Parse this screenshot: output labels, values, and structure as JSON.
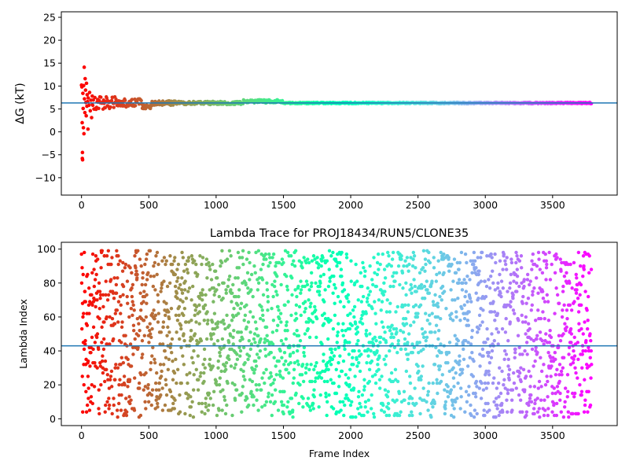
{
  "chart_data": [
    {
      "type": "scatter",
      "title": "",
      "xlabel": "",
      "ylabel": "ΔG (kT)",
      "xlim": [
        -150,
        3980
      ],
      "ylim": [
        -13.8,
        26.2
      ],
      "xticks": [
        0,
        500,
        1000,
        1500,
        2000,
        2500,
        3000,
        3500
      ],
      "yticks": [
        -10,
        -5,
        0,
        5,
        10,
        15,
        20,
        25
      ],
      "hline": 6.3,
      "hline_color": "#1f77b4",
      "colormap": "rainbow (red at frame 0 → violet at last frame)",
      "grid": false,
      "x_max": 3790,
      "early_points": [
        [
          0,
          10.2
        ],
        [
          3,
          9.8
        ],
        [
          5,
          2.0
        ],
        [
          6,
          -5.8
        ],
        [
          7,
          -4.5
        ],
        [
          8,
          -6.1
        ],
        [
          10,
          8.4
        ],
        [
          12,
          5.1
        ],
        [
          14,
          0.9
        ],
        [
          16,
          10.1
        ],
        [
          18,
          -0.4
        ],
        [
          20,
          14.1
        ],
        [
          22,
          7.2
        ],
        [
          25,
          4.2
        ],
        [
          27,
          11.6
        ],
        [
          30,
          9.1
        ],
        [
          32,
          6.4
        ],
        [
          35,
          3.5
        ],
        [
          37,
          10.6
        ],
        [
          40,
          5.6
        ],
        [
          42,
          8.1
        ],
        [
          45,
          6.6
        ],
        [
          48,
          0.6
        ],
        [
          50,
          7.4
        ],
        [
          55,
          5.8
        ],
        [
          60,
          8.6
        ],
        [
          65,
          4.6
        ],
        [
          70,
          6.9
        ],
        [
          75,
          3.1
        ],
        [
          80,
          7.8
        ]
      ]
    },
    {
      "type": "scatter",
      "title": "Lambda Trace for PROJ18434/RUN5/CLONE35",
      "xlabel": "Frame Index",
      "ylabel": "Lambda Index",
      "xlim": [
        -150,
        3980
      ],
      "ylim": [
        -4,
        104
      ],
      "xticks": [
        0,
        500,
        1000,
        1500,
        2000,
        2500,
        3000,
        3500
      ],
      "yticks": [
        0,
        20,
        40,
        60,
        80,
        100
      ],
      "hline": 43,
      "hline_color": "#1f77b4",
      "colormap": "rainbow (red at frame 0 → violet at last frame)",
      "grid": false,
      "x_max": 3790,
      "lambda_range": [
        1,
        99
      ]
    }
  ]
}
